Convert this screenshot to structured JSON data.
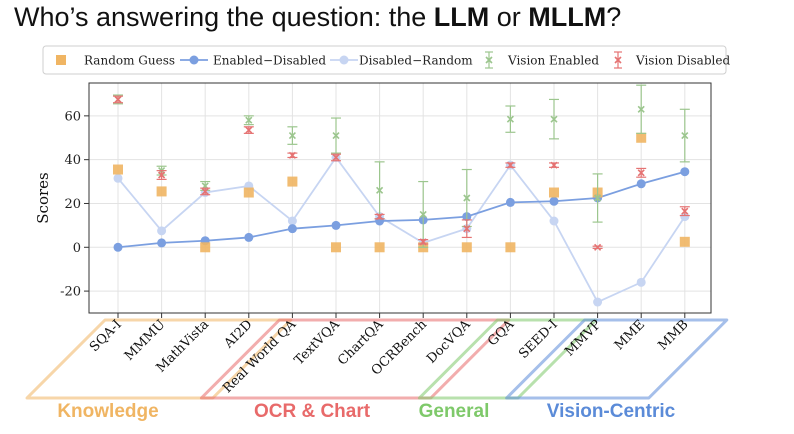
{
  "header": {
    "title_prefix": "Who’s answering the question: the ",
    "title_llm": "LLM",
    "title_or": " or ",
    "title_mllm": "MLLM",
    "title_suffix": "?"
  },
  "chart_data": {
    "type": "line",
    "title": "",
    "xlabel": "",
    "ylabel": "Scores",
    "ylim": [
      -30,
      75
    ],
    "yticks": [
      -20,
      0,
      20,
      40,
      60
    ],
    "grid": true,
    "legend_position": "top",
    "categories": [
      "SQA-I",
      "MMMU",
      "MathVista",
      "AI2D",
      "Real World QA",
      "TextVQA",
      "ChartQA",
      "OCRBench",
      "DocVQA",
      "GQA",
      "SEED-I",
      "MMVP",
      "MME",
      "MMB"
    ],
    "series": [
      {
        "name": "Random Guess",
        "kind": "square",
        "color": "#F0B563",
        "values": [
          35.5,
          25.5,
          0,
          25,
          30,
          0,
          0,
          0,
          0,
          0,
          25,
          25,
          50,
          2.5
        ]
      },
      {
        "name": "Enabled−Disabled",
        "kind": "line",
        "color": "#7B9FE0",
        "values": [
          0,
          2,
          3,
          4.5,
          8.5,
          10,
          12,
          12.5,
          14,
          20.5,
          21,
          22.5,
          29,
          34.5
        ]
      },
      {
        "name": "Disabled−Random",
        "kind": "line",
        "color": "#C7D5F2",
        "values": [
          31.5,
          7.5,
          25,
          28,
          12,
          41,
          14,
          2,
          8.5,
          37.5,
          12,
          -25,
          -16,
          14
        ]
      },
      {
        "name": "Vision Enabled",
        "kind": "errorbar",
        "color": "#9CC68E",
        "values": [
          67.5,
          35,
          28,
          58,
          51,
          51,
          26,
          15,
          22.5,
          58.5,
          58.5,
          22.5,
          63,
          51
        ],
        "errors": [
          2,
          2,
          2,
          2,
          4,
          8,
          13,
          15,
          13,
          6,
          9,
          11,
          11,
          12
        ]
      },
      {
        "name": "Vision Disabled",
        "kind": "errorbar",
        "color": "#E57373",
        "values": [
          67.5,
          33,
          25.5,
          53.5,
          42,
          41,
          14,
          2.5,
          8.5,
          37.5,
          37.5,
          0,
          34,
          16.5
        ],
        "errors": [
          1.5,
          2,
          1.5,
          1.5,
          1,
          1.5,
          1,
          1,
          4,
          1,
          1,
          0.5,
          2,
          2
        ]
      }
    ],
    "groups": [
      {
        "name": "Knowledge",
        "color": "#F0B563",
        "start": 0,
        "end": 3
      },
      {
        "name": "OCR & Chart",
        "color": "#E86A6A",
        "start": 4,
        "end": 8
      },
      {
        "name": "General",
        "color": "#7EC96A",
        "start": 9,
        "end": 10
      },
      {
        "name": "Vision-Centric",
        "color": "#5B8BD8",
        "start": 11,
        "end": 13
      }
    ]
  }
}
